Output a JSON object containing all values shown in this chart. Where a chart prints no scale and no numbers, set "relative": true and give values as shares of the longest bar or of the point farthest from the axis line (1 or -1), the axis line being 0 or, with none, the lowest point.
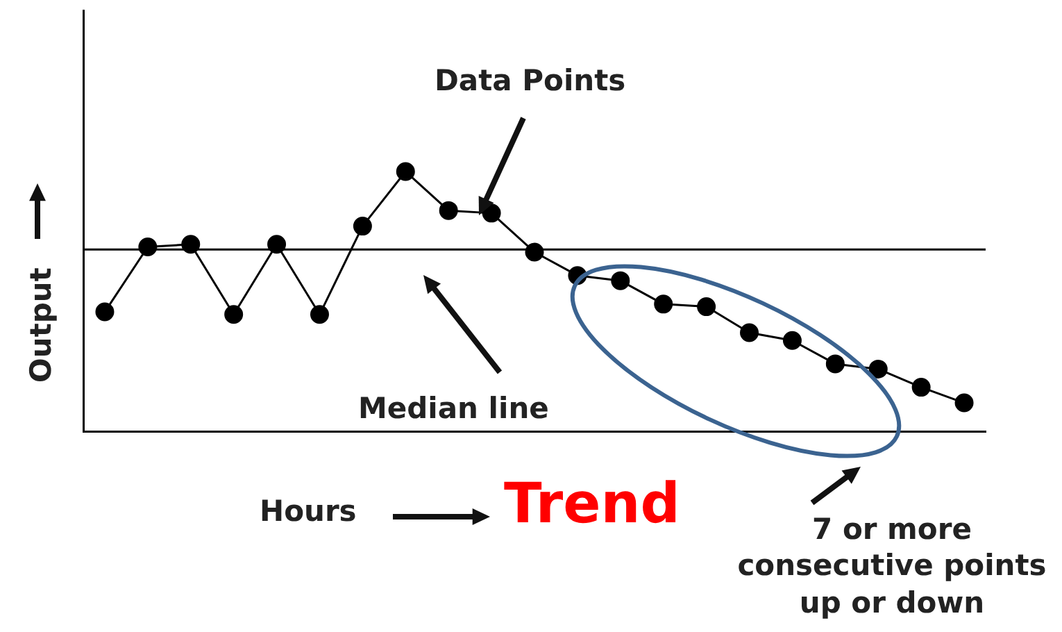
{
  "chart_data": {
    "type": "line",
    "title": "Trend",
    "xlabel": "Hours",
    "ylabel": "Output",
    "relative": true,
    "color": "#000000",
    "marker": "circle",
    "legend": false,
    "grid": false,
    "categories": [
      null,
      null,
      null,
      null,
      null,
      null,
      null,
      null,
      null,
      null,
      null,
      null,
      null,
      null,
      null,
      null,
      null,
      null,
      null,
      null,
      null
    ],
    "values": [
      0.46,
      0.71,
      0.72,
      0.45,
      0.72,
      0.45,
      0.79,
      1,
      0.85,
      0.84,
      0.69,
      0.6,
      0.58,
      0.49,
      0.48,
      0.38,
      0.35,
      0.26,
      0.24,
      0.17,
      0.11
    ],
    "ref_lines": [
      {
        "axis": "y",
        "value": 0.7,
        "label": "Median line"
      }
    ],
    "annotations": [
      "Data Points",
      "7 or more consecutive points up or down"
    ]
  }
}
